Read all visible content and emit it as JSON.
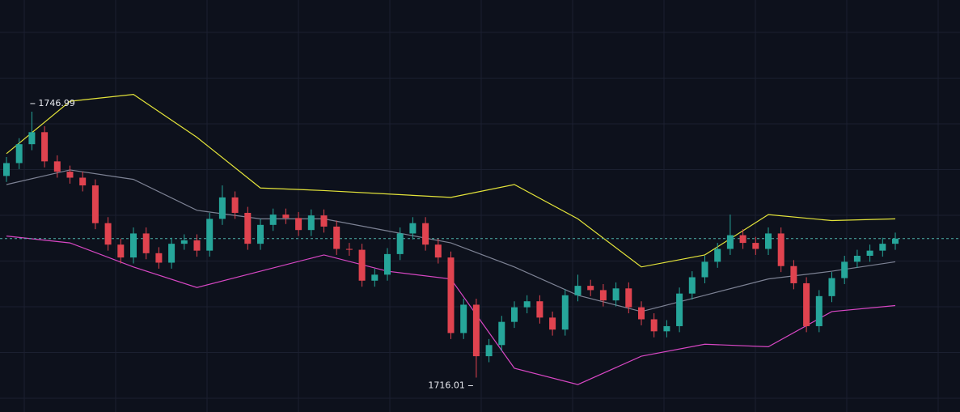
{
  "chart_data": {
    "type": "candlestick",
    "ylim": [
      1712,
      1760
    ],
    "up_color": "#26a69a",
    "down_color": "#e0434f",
    "open": [
      1739.5,
      1741.0,
      1743.2,
      1744.6,
      1741.2,
      1740.0,
      1739.3,
      1738.4,
      1734.0,
      1731.5,
      1730.0,
      1732.8,
      1730.5,
      1729.4,
      1731.6,
      1732.0,
      1730.8,
      1734.5,
      1737.0,
      1735.2,
      1731.6,
      1733.8,
      1735.0,
      1734.6,
      1733.2,
      1734.9,
      1733.6,
      1731.0,
      1730.9,
      1727.3,
      1728.0,
      1730.4,
      1732.8,
      1734.0,
      1731.5,
      1730.0,
      1721.2,
      1724.5,
      1718.5,
      1719.8,
      1722.5,
      1724.2,
      1724.9,
      1723.0,
      1721.6,
      1725.6,
      1726.7,
      1726.2,
      1725.0,
      1726.4,
      1724.2,
      1722.8,
      1721.4,
      1722.0,
      1725.8,
      1727.7,
      1729.5,
      1731.0,
      1732.6,
      1731.7,
      1731.0,
      1732.8,
      1729.0,
      1727.0,
      1722.0,
      1725.5,
      1727.6,
      1729.5,
      1730.2,
      1730.8,
      1731.6
    ],
    "high": [
      1741.7,
      1743.9,
      1746.99,
      1745.3,
      1741.9,
      1740.7,
      1740.0,
      1739.1,
      1734.7,
      1732.2,
      1733.5,
      1733.5,
      1731.2,
      1732.3,
      1732.7,
      1732.7,
      1735.2,
      1738.4,
      1737.7,
      1735.9,
      1734.5,
      1735.7,
      1735.7,
      1735.3,
      1735.6,
      1735.6,
      1734.3,
      1731.7,
      1731.6,
      1728.7,
      1731.1,
      1733.5,
      1734.7,
      1734.7,
      1732.2,
      1730.7,
      1725.2,
      1725.2,
      1720.5,
      1723.2,
      1724.9,
      1725.6,
      1725.6,
      1723.7,
      1726.3,
      1728.0,
      1727.4,
      1726.9,
      1727.1,
      1727.1,
      1724.9,
      1723.5,
      1722.7,
      1726.5,
      1728.4,
      1730.2,
      1731.7,
      1735.0,
      1733.3,
      1732.4,
      1733.5,
      1733.5,
      1729.7,
      1727.7,
      1726.2,
      1728.3,
      1730.2,
      1730.9,
      1731.5,
      1732.3,
      1732.9
    ],
    "low": [
      1738.8,
      1740.3,
      1742.5,
      1740.5,
      1739.3,
      1738.6,
      1737.7,
      1733.3,
      1730.8,
      1729.3,
      1729.3,
      1729.8,
      1728.7,
      1728.7,
      1730.9,
      1730.1,
      1730.1,
      1733.8,
      1734.5,
      1730.9,
      1730.9,
      1733.1,
      1733.9,
      1732.5,
      1732.5,
      1732.9,
      1730.3,
      1730.2,
      1726.6,
      1726.6,
      1727.3,
      1729.7,
      1732.1,
      1730.8,
      1729.3,
      1720.5,
      1720.5,
      1716.01,
      1717.8,
      1719.1,
      1721.8,
      1723.5,
      1722.3,
      1720.9,
      1720.9,
      1724.9,
      1725.5,
      1724.3,
      1724.3,
      1723.5,
      1722.1,
      1720.7,
      1720.7,
      1721.3,
      1725.1,
      1727.0,
      1728.8,
      1730.3,
      1731.0,
      1730.3,
      1730.3,
      1728.3,
      1726.3,
      1721.3,
      1721.3,
      1724.8,
      1726.9,
      1728.8,
      1729.5,
      1730.1,
      1730.9
    ],
    "close": [
      1741.0,
      1743.2,
      1744.6,
      1741.2,
      1740.0,
      1739.3,
      1738.4,
      1734.0,
      1731.5,
      1730.0,
      1732.8,
      1730.5,
      1729.4,
      1731.6,
      1732.0,
      1730.8,
      1734.5,
      1737.0,
      1735.2,
      1731.6,
      1733.8,
      1735.0,
      1734.6,
      1733.2,
      1734.9,
      1733.6,
      1731.0,
      1730.9,
      1727.3,
      1728.0,
      1730.4,
      1732.8,
      1734.0,
      1731.5,
      1730.0,
      1721.2,
      1724.5,
      1718.5,
      1719.8,
      1722.5,
      1724.2,
      1724.9,
      1723.0,
      1721.6,
      1725.6,
      1726.7,
      1726.2,
      1725.0,
      1726.4,
      1724.2,
      1722.8,
      1721.4,
      1722.0,
      1725.8,
      1727.7,
      1729.5,
      1731.0,
      1732.6,
      1731.7,
      1731.0,
      1732.8,
      1729.0,
      1727.0,
      1722.0,
      1725.5,
      1727.6,
      1729.5,
      1730.2,
      1730.8,
      1731.6,
      1732.2
    ],
    "bands": {
      "x": [
        0,
        5,
        10,
        15,
        20,
        25,
        30,
        35,
        40,
        45,
        50,
        55,
        60,
        65,
        70
      ],
      "series": [
        {
          "color": "#e4e43a",
          "values": [
            1742.1,
            1748.2,
            1749.0,
            1744.0,
            1738.1,
            1737.8,
            1737.4,
            1737.0,
            1738.5,
            1734.5,
            1728.9,
            1730.3,
            1735.0,
            1734.3,
            1734.5
          ]
        },
        {
          "color": "#7d8294",
          "values": [
            1738.5,
            1740.2,
            1739.1,
            1735.5,
            1734.5,
            1734.5,
            1733.1,
            1731.7,
            1728.9,
            1725.6,
            1723.7,
            1725.6,
            1727.5,
            1728.4,
            1729.5
          ]
        },
        {
          "color": "#d847c4",
          "values": [
            1732.5,
            1731.7,
            1728.9,
            1726.5,
            1728.4,
            1730.3,
            1728.4,
            1727.5,
            1717.1,
            1715.2,
            1718.5,
            1719.9,
            1719.6,
            1723.7,
            1724.4
          ]
        }
      ]
    }
  }
}
